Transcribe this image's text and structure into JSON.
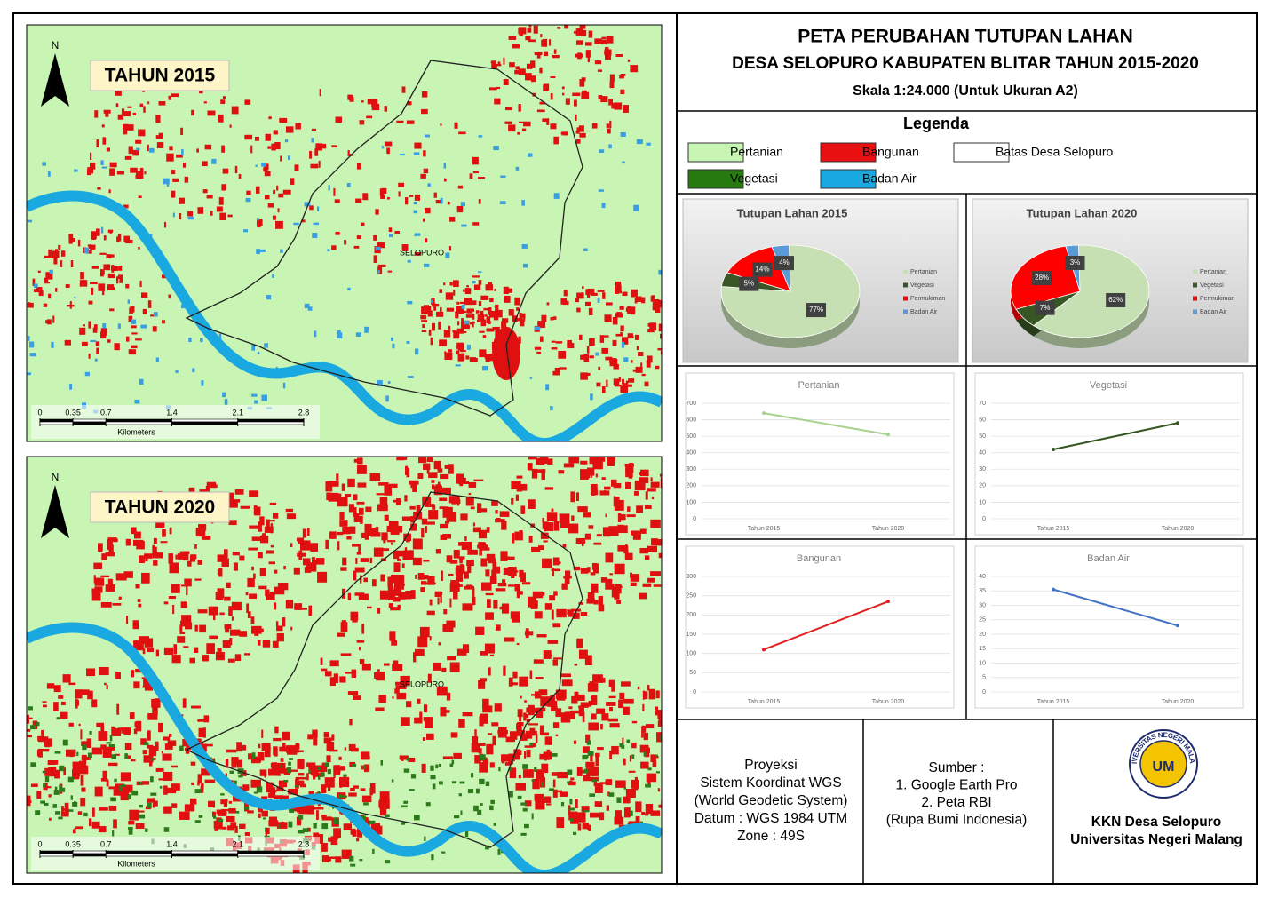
{
  "header": {
    "title": "PETA PERUBAHAN TUTUPAN LAHAN",
    "subtitle": "DESA SELOPURO KABUPATEN BLITAR TAHUN 2015-2020",
    "scale": "Skala 1:24.000 (Untuk Ukuran A2)"
  },
  "legend": {
    "title": "Legenda",
    "items": [
      {
        "label": "Pertanian",
        "color": "#c8f5b4"
      },
      {
        "label": "Bangunan",
        "color": "#e81010"
      },
      {
        "label": "Batas Desa Selopuro",
        "color": "#ffffff"
      },
      {
        "label": "Vegetasi",
        "color": "#267a0f"
      },
      {
        "label": "Badan Air",
        "color": "#19a9e0"
      }
    ]
  },
  "maps": [
    {
      "label": "TAHUN 2015",
      "place": "SELOPURO",
      "north": "N",
      "scalebar": {
        "ticks": [
          0,
          0.35,
          0.7,
          1.4,
          2.1,
          2.8
        ],
        "unit": "Kilometers"
      }
    },
    {
      "label": "TAHUN 2020",
      "place": "SELOPURO",
      "north": "N",
      "scalebar": {
        "ticks": [
          0,
          0.35,
          0.7,
          1.4,
          2.1,
          2.8
        ],
        "unit": "Kilometers"
      }
    }
  ],
  "chart_data": [
    {
      "type": "pie",
      "title": "Tutupan Lahan 2015",
      "categories": [
        "Pertanian",
        "Vegetasi",
        "Permukiman",
        "Badan Air"
      ],
      "values": [
        77,
        5,
        14,
        4
      ],
      "value_labels": [
        "77%",
        "5%",
        "14%",
        "4%"
      ],
      "colors": [
        "#c6e0b4",
        "#375623",
        "#ff0000",
        "#5b9bd5"
      ]
    },
    {
      "type": "pie",
      "title": "Tutupan Lahan 2020",
      "categories": [
        "Pertanian",
        "Vegetasi",
        "Permukiman",
        "Badan Air"
      ],
      "values": [
        62,
        7,
        28,
        3
      ],
      "value_labels": [
        "62%",
        "7%",
        "28%",
        "3%"
      ],
      "colors": [
        "#c6e0b4",
        "#375623",
        "#ff0000",
        "#5b9bd5"
      ]
    },
    {
      "type": "line",
      "title": "Pertanian",
      "categories": [
        "Tahun 2015",
        "Tahun 2020"
      ],
      "values": [
        640,
        510
      ],
      "color": "#a9d18e",
      "ylim": [
        0,
        700
      ],
      "yticks": [
        0,
        100,
        200,
        300,
        400,
        500,
        600,
        700
      ],
      "grid": true
    },
    {
      "type": "line",
      "title": "Vegetasi",
      "categories": [
        "Tahun 2015",
        "Tahun 2020"
      ],
      "values": [
        42,
        58
      ],
      "color": "#375623",
      "ylim": [
        0,
        70
      ],
      "yticks": [
        0,
        10,
        20,
        30,
        40,
        50,
        60,
        70
      ],
      "grid": true
    },
    {
      "type": "line",
      "title": "Bangunan",
      "categories": [
        "Tahun 2015",
        "Tahun 2020"
      ],
      "values": [
        110,
        235
      ],
      "color": "#e02020",
      "ylim": [
        0,
        300
      ],
      "yticks": [
        0,
        50,
        100,
        150,
        200,
        250,
        300
      ],
      "grid": true
    },
    {
      "type": "line",
      "title": "Badan Air",
      "categories": [
        "Tahun 2015",
        "Tahun 2020"
      ],
      "values": [
        35.5,
        23
      ],
      "color": "#4472c4",
      "ylim": [
        0,
        40
      ],
      "yticks": [
        0,
        5,
        10,
        15,
        20,
        25,
        30,
        35,
        40
      ],
      "grid": true
    }
  ],
  "footer": {
    "projection": [
      "Proyeksi",
      "Sistem Koordinat WGS",
      "(World Geodetic System)",
      "Datum : WGS 1984 UTM",
      "Zone : 49S"
    ],
    "source": [
      "Sumber :",
      "1. Google Earth Pro",
      "2. Peta RBI",
      "(Rupa Bumi Indonesia)"
    ],
    "logo": {
      "ring": "UNIVERSITAS NEGERI MALANG",
      "mark": "UM"
    },
    "credit": [
      "KKN Desa Selopuro",
      "Universitas Negeri Malang"
    ]
  }
}
